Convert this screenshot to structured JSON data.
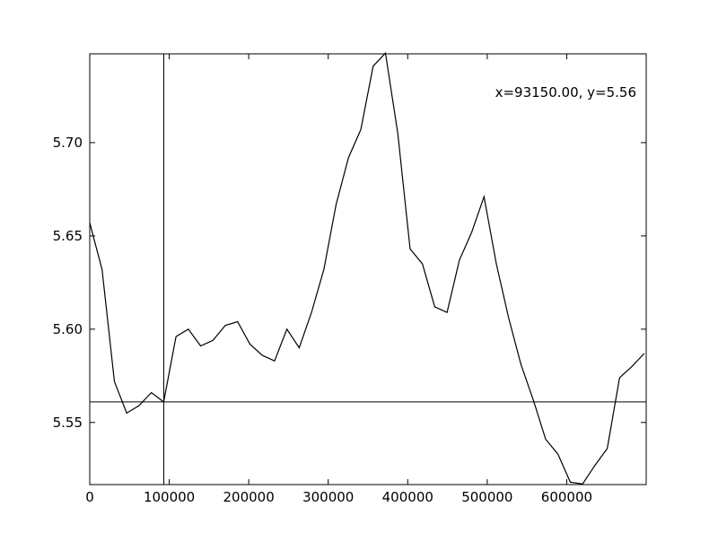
{
  "chart_data": {
    "type": "line",
    "title": "",
    "xlabel": "",
    "ylabel": "",
    "xlim": [
      0,
      700000
    ],
    "ylim": [
      5.5167,
      5.7476
    ],
    "grid": false,
    "legend": "none",
    "x_ticks": [
      0,
      100000,
      200000,
      300000,
      400000,
      500000,
      600000
    ],
    "x_tick_labels": [
      "0",
      "100000",
      "200000",
      "300000",
      "400000",
      "500000",
      "600000"
    ],
    "y_ticks": [
      5.55,
      5.6,
      5.65,
      5.7
    ],
    "y_tick_labels": [
      "5.55",
      "5.60",
      "5.65",
      "5.70"
    ],
    "series": [
      {
        "x": [
          0,
          15500,
          31000,
          46500,
          62000,
          77500,
          93000,
          108500,
          124000,
          139500,
          155000,
          170500,
          186000,
          201500,
          217000,
          232500,
          248000,
          263500,
          279000,
          294500,
          310000,
          325500,
          341000,
          356500,
          372000,
          387500,
          403000,
          418500,
          434000,
          449500,
          465000,
          480500,
          496000,
          511500,
          527000,
          542500,
          558000,
          573500,
          589000,
          604500,
          620000,
          635500,
          651000,
          666500,
          682000,
          697500
        ],
        "y": [
          5.657,
          5.632,
          5.572,
          5.555,
          5.559,
          5.566,
          5.561,
          5.596,
          5.6,
          5.591,
          5.594,
          5.602,
          5.604,
          5.592,
          5.586,
          5.583,
          5.6,
          5.59,
          5.609,
          5.632,
          5.667,
          5.692,
          5.707,
          5.741,
          5.748,
          5.705,
          5.643,
          5.635,
          5.612,
          5.609,
          5.637,
          5.652,
          5.671,
          5.635,
          5.606,
          5.581,
          5.562,
          5.541,
          5.533,
          5.518,
          5.517,
          5.527,
          5.536,
          5.574,
          5.58,
          5.587
        ],
        "color": "#000000"
      }
    ],
    "crosshair": {
      "x": 93150,
      "y": 5.561
    },
    "annotation": "x=93150.00, y=5.56"
  }
}
